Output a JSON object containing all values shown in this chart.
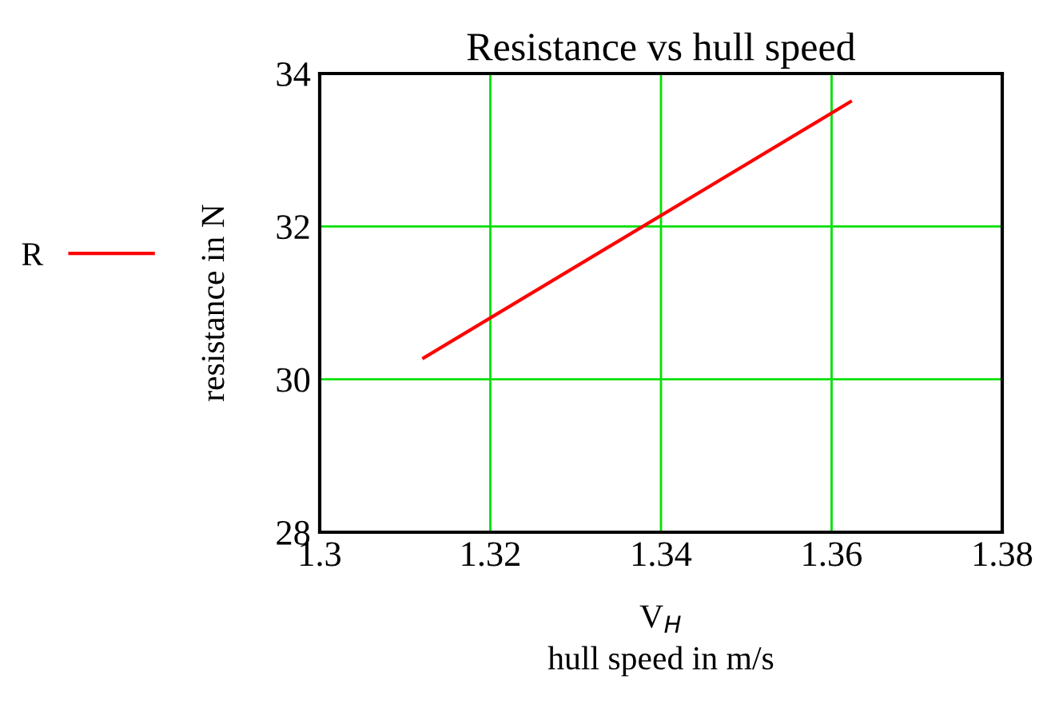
{
  "chart_data": {
    "type": "line",
    "title": "Resistance vs hull speed",
    "xlabel": "V$_{H}$\nhull speed in m/s",
    "ylabel": "resistance in N",
    "x": [
      1.3122,
      1.3622
    ],
    "series": [
      {
        "name": "R",
        "color": "#ff0000",
        "values": [
          30.28,
          33.63
        ]
      }
    ],
    "xlim": [
      1.3,
      1.38
    ],
    "ylim": [
      28,
      34
    ],
    "xticks": [
      1.3,
      1.32,
      1.34,
      1.36,
      1.38
    ],
    "yticks": [
      28,
      30,
      32,
      34
    ],
    "grid": true,
    "legend": "left",
    "marker": "none",
    "line_style": "solid"
  }
}
